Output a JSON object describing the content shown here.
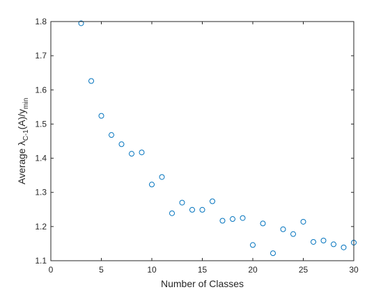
{
  "chart_data": {
    "type": "scatter",
    "title": "",
    "xlabel": "Number of Classes",
    "ylabel": {
      "prefix": "Average ",
      "lambda": "λ",
      "lambda_sub": "C-1",
      "middle": "(A)/y",
      "y_sub": "min"
    },
    "xlim": [
      0,
      30
    ],
    "ylim": [
      1.1,
      1.8
    ],
    "xticks": [
      0,
      5,
      10,
      15,
      20,
      25,
      30
    ],
    "xtick_labels": [
      "0",
      "5",
      "10",
      "15",
      "20",
      "25",
      "30"
    ],
    "yticks": [
      1.1,
      1.2,
      1.3,
      1.4,
      1.5,
      1.6,
      1.7,
      1.8
    ],
    "ytick_labels": [
      "1.1",
      "1.2",
      "1.3",
      "1.4",
      "1.5",
      "1.6",
      "1.7",
      "1.8"
    ],
    "grid": false,
    "marker": "circle-open",
    "color": "#0072bd",
    "x": [
      3,
      4,
      5,
      6,
      7,
      8,
      9,
      10,
      11,
      12,
      13,
      14,
      15,
      16,
      17,
      18,
      19,
      20,
      21,
      22,
      23,
      24,
      25,
      26,
      27,
      28,
      29,
      30
    ],
    "y": [
      1.795,
      1.626,
      1.524,
      1.468,
      1.441,
      1.413,
      1.417,
      1.323,
      1.345,
      1.239,
      1.27,
      1.249,
      1.249,
      1.274,
      1.217,
      1.222,
      1.225,
      1.146,
      1.209,
      1.122,
      1.192,
      1.178,
      1.214,
      1.155,
      1.159,
      1.148,
      1.139,
      1.153
    ]
  }
}
